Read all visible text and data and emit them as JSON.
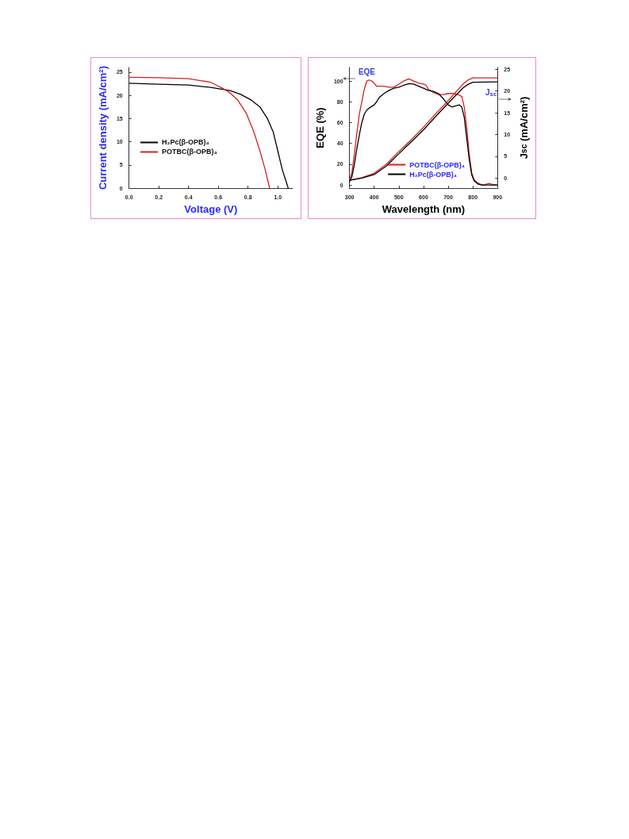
{
  "chart_data": [
    {
      "type": "line",
      "xlabel": "Voltage (V)",
      "ylabel": "Current density (mA/cm²)",
      "xlim": [
        0,
        1.1
      ],
      "ylim": [
        0,
        26
      ],
      "xticks": [
        {
          "value": 0,
          "label": "0.0"
        },
        {
          "value": 0.2,
          "label": "0.2"
        },
        {
          "value": 0.4,
          "label": "0.4"
        },
        {
          "value": 0.6,
          "label": "0.6"
        },
        {
          "value": 0.8,
          "label": "0.8"
        },
        {
          "value": 1,
          "label": "1.0"
        }
      ],
      "yticks": [
        0,
        5,
        10,
        15,
        20,
        25
      ],
      "grid": false,
      "legend": "left",
      "line_style": "solid",
      "marker": "none",
      "series": [
        {
          "name": "H₂Pc(β-OPB)₄",
          "color": "#000000",
          "x": [
            0,
            0.2,
            0.4,
            0.55,
            0.68,
            0.75,
            0.82,
            0.88,
            0.93,
            0.97,
            1.0,
            1.03,
            1.07
          ],
          "values": [
            22.6,
            22.4,
            22.2,
            21.7,
            21.0,
            20.2,
            19.0,
            17.5,
            15,
            12,
            8,
            4,
            0
          ]
        },
        {
          "name": "POTBC(β-OPB)₄",
          "color": "#d62020",
          "x": [
            0,
            0.2,
            0.4,
            0.55,
            0.63,
            0.68,
            0.73,
            0.79,
            0.84,
            0.88,
            0.915,
            0.945
          ],
          "values": [
            23.9,
            23.8,
            23.6,
            22.8,
            21.5,
            20.5,
            19,
            16,
            12,
            8,
            4,
            0
          ]
        }
      ]
    },
    {
      "type": "line",
      "xlabel": "Wavelength (nm)",
      "ylabel": "EQE (%)",
      "y2label": "J$_{sc}$ (mA/cm²)",
      "xlim": [
        300,
        900
      ],
      "ylim": [
        -3,
        113
      ],
      "y2lim": [
        -2.3,
        25.4
      ],
      "xticks": [
        300,
        400,
        500,
        600,
        700,
        800,
        900
      ],
      "yticks": [
        0,
        20,
        40,
        60,
        80,
        100
      ],
      "y2ticks": [
        0,
        5,
        10,
        15,
        20,
        25
      ],
      "grid": false,
      "legend": "bottom right",
      "line_style": "solid",
      "marker": "none",
      "annotations": [
        "EQE",
        "J$_{sc}$"
      ],
      "series": [
        {
          "name": "POTBC(β-OPB)₄",
          "color": "#d62020",
          "x": [
            300,
            310,
            320,
            330,
            340,
            350,
            360,
            370,
            380,
            390,
            400,
            410,
            420,
            440,
            460,
            480,
            500,
            520,
            540,
            560,
            580,
            600,
            610,
            620,
            640,
            660,
            680,
            700,
            720,
            740,
            755,
            765,
            775,
            785,
            795,
            805,
            820,
            835,
            850,
            865,
            880,
            900
          ],
          "values": [
            5,
            12,
            30,
            50,
            68,
            80,
            92,
            100,
            101,
            100,
            98,
            95,
            95,
            95,
            94,
            94,
            97,
            100,
            102,
            100,
            98,
            97,
            96,
            92,
            89,
            87,
            87,
            88,
            88,
            87,
            85,
            75,
            55,
            30,
            12,
            5,
            2,
            0,
            0.5,
            1.5,
            0.5,
            0
          ]
        },
        {
          "name": "H₂Pc(β-OPB)₄",
          "color": "#000000",
          "x": [
            300,
            310,
            320,
            330,
            340,
            350,
            360,
            370,
            380,
            400,
            410,
            420,
            440,
            460,
            480,
            500,
            520,
            540,
            560,
            580,
            600,
            620,
            640,
            660,
            680,
            700,
            715,
            730,
            745,
            755,
            765,
            775,
            785,
            795,
            805,
            820,
            840,
            900
          ],
          "values": [
            3,
            8,
            20,
            35,
            48,
            60,
            68,
            72,
            74,
            77,
            80,
            84,
            88,
            91,
            93,
            94,
            96,
            97.5,
            97,
            95,
            93,
            91,
            90,
            88,
            83,
            77,
            75,
            76,
            77,
            75,
            65,
            45,
            25,
            10,
            4,
            1,
            0,
            0
          ]
        },
        {
          "color": "#d62020",
          "axis": "y2",
          "x": [
            300,
            350,
            400,
            450,
            500,
            550,
            600,
            650,
            700,
            760,
            780,
            800,
            900
          ],
          "values": [
            -0.5,
            0.1,
            1.1,
            3.2,
            6.1,
            8.8,
            11.7,
            14.8,
            17.8,
            21.6,
            22.5,
            23.0,
            23.0
          ]
        },
        {
          "color": "#000000",
          "axis": "y2",
          "x": [
            300,
            350,
            400,
            450,
            500,
            550,
            600,
            650,
            700,
            760,
            780,
            800,
            900
          ],
          "values": [
            -0.5,
            0,
            0.8,
            2.8,
            5.6,
            8.3,
            11.1,
            14.2,
            17.2,
            20.7,
            21.5,
            22.0,
            22.1
          ]
        }
      ]
    }
  ]
}
